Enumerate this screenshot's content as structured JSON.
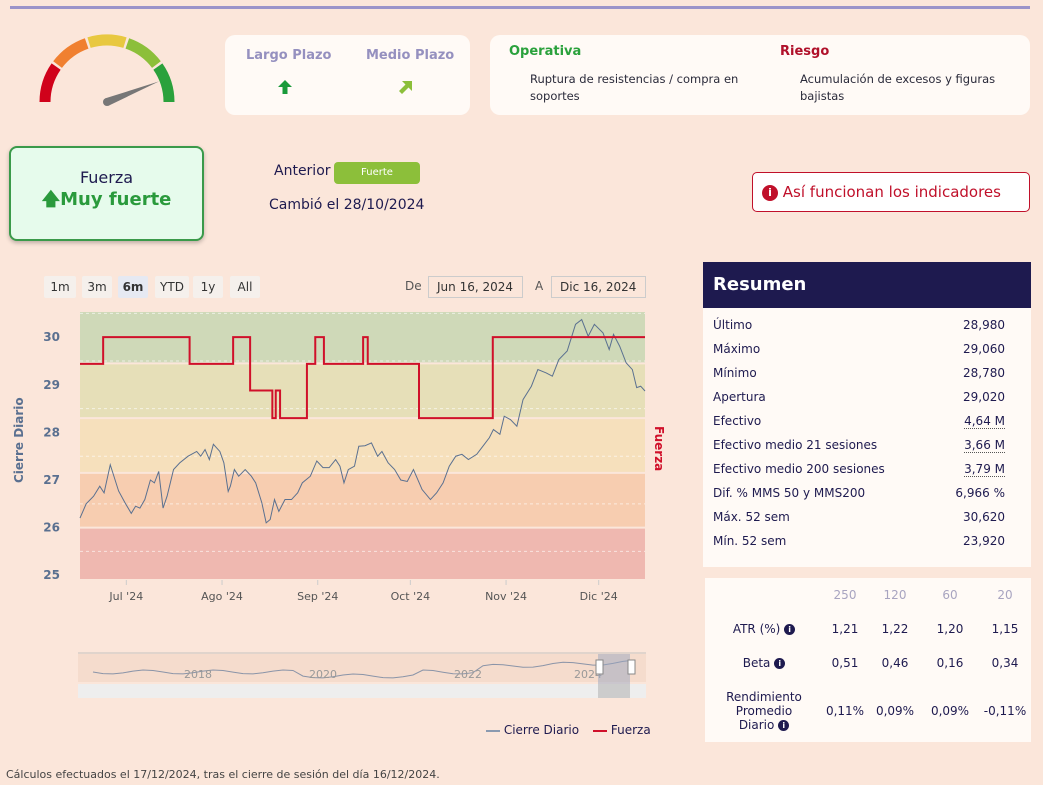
{
  "gauge": {
    "colors": [
      "#d0021b",
      "#f08030",
      "#e8c840",
      "#8cbf3a",
      "#2aa13c"
    ],
    "value_fraction": 0.88
  },
  "horizons": {
    "largo_label": "Largo Plazo",
    "largo_icon": "arrow-up-icon",
    "largo_color": "#1a9a3a",
    "medio_label": "Medio Plazo",
    "medio_icon": "arrow-up-right-icon",
    "medio_color": "#8cbf3a"
  },
  "operativa": {
    "title": "Operativa",
    "text": "Ruptura de resistencias / compra en soportes"
  },
  "riesgo": {
    "title": "Riesgo",
    "text": "Acumulación de excesos y figuras bajistas"
  },
  "fuerza": {
    "label": "Fuerza",
    "value": "Muy fuerte"
  },
  "anterior": {
    "label": "Anterior",
    "badge": "Fuerte",
    "changed": "Cambió el 28/10/2024"
  },
  "help_button": "Así funcionan los indicadores",
  "range_buttons": [
    "1m",
    "3m",
    "6m",
    "YTD",
    "1y",
    "All"
  ],
  "range_selected": "6m",
  "date_from_label": "De",
  "date_from": "Jun 16, 2024",
  "date_to_label": "A",
  "date_to": "Dic 16, 2024",
  "chart_data": {
    "type": "line",
    "ylabel": "Cierre Diario",
    "y2label": "Fuerza",
    "ylim": [
      24.9,
      30.55
    ],
    "yticks": [
      25,
      26,
      27,
      28,
      29,
      30
    ],
    "x_unit": "days since Jun 16, 2024",
    "xlim": [
      0,
      183
    ],
    "xticks": [
      {
        "x": 15,
        "label": "Jul '24"
      },
      {
        "x": 46,
        "label": "Ago '24"
      },
      {
        "x": 77,
        "label": "Sep '24"
      },
      {
        "x": 107,
        "label": "Oct '24"
      },
      {
        "x": 138,
        "label": "Nov '24"
      },
      {
        "x": 168,
        "label": "Dic '24"
      }
    ],
    "bands": [
      {
        "from": 29.45,
        "to": 30.55,
        "color": "#cfd9b8"
      },
      {
        "from": 28.3,
        "to": 29.45,
        "color": "#e6dfb8"
      },
      {
        "from": 27.15,
        "to": 28.3,
        "color": "#f6e0bc"
      },
      {
        "from": 26.0,
        "to": 27.15,
        "color": "#f7cdb0"
      },
      {
        "from": 24.9,
        "to": 26.0,
        "color": "#efb8b0"
      }
    ],
    "series": [
      {
        "name": "Cierre Diario",
        "color": "#5a7090",
        "points": [
          [
            0,
            26.2
          ],
          [
            2,
            26.5
          ],
          [
            4.4,
            26.66
          ],
          [
            6.4,
            26.87
          ],
          [
            7.8,
            26.73
          ],
          [
            9.8,
            27.32
          ],
          [
            12.5,
            26.77
          ],
          [
            14.6,
            26.52
          ],
          [
            16.6,
            26.3
          ],
          [
            18,
            26.45
          ],
          [
            19.4,
            26.41
          ],
          [
            21,
            26.59
          ],
          [
            22.8,
            27.0
          ],
          [
            24.1,
            26.94
          ],
          [
            25.5,
            27.18
          ],
          [
            26.9,
            26.41
          ],
          [
            28.2,
            26.66
          ],
          [
            30.3,
            27.22
          ],
          [
            32.3,
            27.36
          ],
          [
            35,
            27.5
          ],
          [
            37.8,
            27.6
          ],
          [
            39.1,
            27.5
          ],
          [
            40.5,
            27.64
          ],
          [
            41.9,
            27.43
          ],
          [
            43.2,
            27.75
          ],
          [
            45.3,
            27.6
          ],
          [
            46.6,
            27.36
          ],
          [
            48,
            26.76
          ],
          [
            48.7,
            26.87
          ],
          [
            50,
            27.22
          ],
          [
            51.4,
            27.08
          ],
          [
            53.5,
            27.22
          ],
          [
            55.5,
            27.08
          ],
          [
            56.9,
            26.94
          ],
          [
            58.9,
            26.52
          ],
          [
            60.3,
            26.1
          ],
          [
            61.6,
            26.17
          ],
          [
            63,
            26.59
          ],
          [
            64.4,
            26.34
          ],
          [
            66.4,
            26.59
          ],
          [
            68.5,
            26.59
          ],
          [
            70.5,
            26.73
          ],
          [
            72,
            26.94
          ],
          [
            74.6,
            27.08
          ],
          [
            76.7,
            27.4
          ],
          [
            78.7,
            27.26
          ],
          [
            80.7,
            27.26
          ],
          [
            82.8,
            27.43
          ],
          [
            84.2,
            27.29
          ],
          [
            85.5,
            26.94
          ],
          [
            86.9,
            27.22
          ],
          [
            88.9,
            27.29
          ],
          [
            90.3,
            27.71
          ],
          [
            92.3,
            27.72
          ],
          [
            94.4,
            27.78
          ],
          [
            96.4,
            27.5
          ],
          [
            97.8,
            27.6
          ],
          [
            99.8,
            27.36
          ],
          [
            101.9,
            27.22
          ],
          [
            103.9,
            27.0
          ],
          [
            106,
            26.97
          ],
          [
            108,
            27.22
          ],
          [
            110.8,
            26.8
          ],
          [
            113.5,
            26.59
          ],
          [
            115.5,
            26.73
          ],
          [
            117.6,
            26.94
          ],
          [
            119.6,
            27.29
          ],
          [
            121.7,
            27.5
          ],
          [
            123.7,
            27.54
          ],
          [
            125.8,
            27.43
          ],
          [
            128.5,
            27.54
          ],
          [
            130.5,
            27.71
          ],
          [
            132.6,
            27.89
          ],
          [
            133.9,
            28.06
          ],
          [
            136,
            27.96
          ],
          [
            137.4,
            28.34
          ],
          [
            139.4,
            28.27
          ],
          [
            141.5,
            28.13
          ],
          [
            143.5,
            28.69
          ],
          [
            146.2,
            28.97
          ],
          [
            148.3,
            29.32
          ],
          [
            151,
            29.25
          ],
          [
            153,
            29.18
          ],
          [
            155.1,
            29.53
          ],
          [
            157.8,
            29.71
          ],
          [
            160.5,
            30.27
          ],
          [
            162.5,
            30.37
          ],
          [
            164.6,
            30.02
          ],
          [
            166.6,
            30.27
          ],
          [
            169.4,
            30.09
          ],
          [
            171.4,
            29.74
          ],
          [
            172.8,
            30.06
          ],
          [
            174.8,
            29.81
          ],
          [
            176.9,
            29.46
          ],
          [
            178.9,
            29.32
          ],
          [
            180.3,
            28.94
          ],
          [
            181.6,
            28.97
          ],
          [
            183,
            28.87
          ]
        ]
      },
      {
        "name": "Fuerza",
        "color": "#d0102a",
        "step": true,
        "points": [
          [
            0,
            29.44
          ],
          [
            7.5,
            30
          ],
          [
            35.5,
            29.44
          ],
          [
            49.6,
            30
          ],
          [
            55.1,
            28.88
          ],
          [
            62.3,
            28.3
          ],
          [
            63.4,
            28.88
          ],
          [
            64.8,
            28.3
          ],
          [
            73.5,
            29.44
          ],
          [
            76.2,
            30
          ],
          [
            79,
            29.44
          ],
          [
            91.7,
            30
          ],
          [
            93.2,
            29.44
          ],
          [
            109.8,
            28.3
          ],
          [
            133.7,
            30
          ],
          [
            183,
            30
          ]
        ]
      }
    ],
    "navigator_labels": [
      "2018",
      "2020",
      "2022",
      "2024"
    ],
    "legend": "bottom-right"
  },
  "resumen": {
    "title": "Resumen",
    "rows": [
      {
        "label": "Último",
        "value": "28,980"
      },
      {
        "label": "Máximo",
        "value": "29,060"
      },
      {
        "label": "Mínimo",
        "value": "28,780"
      },
      {
        "label": "Apertura",
        "value": "29,020"
      },
      {
        "label": "Efectivo",
        "value": "4,64 M"
      },
      {
        "label": "Efectivo medio 21 sesiones",
        "value": "3,66 M"
      },
      {
        "label": "Efectivo medio 200 sesiones",
        "value": "3,79 M"
      },
      {
        "label": "Dif. % MMS 50 y MMS200",
        "value": "6,966 %"
      },
      {
        "label": "Máx. 52 sem",
        "value": "30,620"
      },
      {
        "label": "Mín. 52 sem",
        "value": "23,920"
      }
    ]
  },
  "stats": {
    "periods": [
      "250",
      "120",
      "60",
      "20"
    ],
    "rows": [
      {
        "label": "ATR (%)",
        "values": [
          "1,21",
          "1,22",
          "1,20",
          "1,15"
        ]
      },
      {
        "label": "Beta",
        "values": [
          "0,51",
          "0,46",
          "0,16",
          "0,34"
        ]
      },
      {
        "label": "Rendimiento Promedio Diario",
        "values": [
          "0,11%",
          "0,09%",
          "0,09%",
          "-0,11%"
        ]
      }
    ]
  },
  "footer": "Cálculos efectuados el 17/12/2024, tras el cierre de sesión del día 16/12/2024."
}
